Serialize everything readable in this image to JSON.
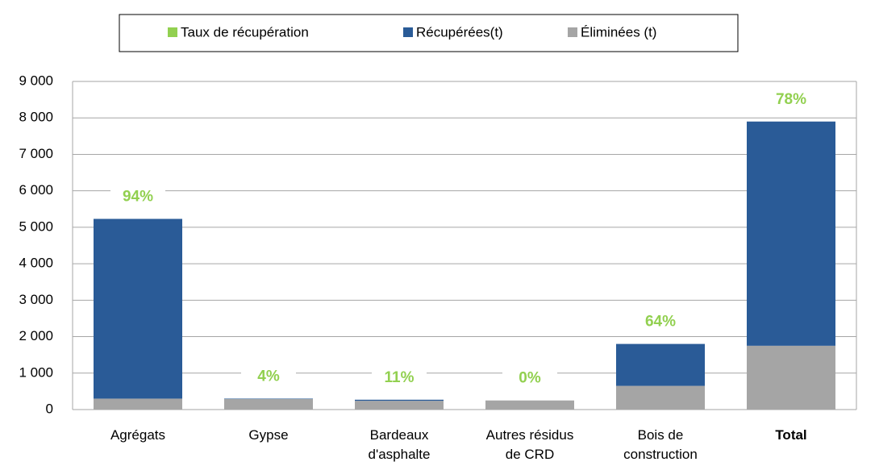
{
  "chart_data": {
    "type": "stacked_bar",
    "categories": [
      "Agrégats",
      "Gypse",
      "Bardeaux d'asphalte",
      "Autres résidus de CRD",
      "Bois de construction",
      "Total"
    ],
    "series": [
      {
        "name": "Éliminées (t)",
        "color": "#a5a5a5",
        "values": [
          300,
          290,
          240,
          250,
          650,
          1750
        ]
      },
      {
        "name": "Récupérées(t)",
        "color": "#2a5b97",
        "values": [
          4930,
          12,
          30,
          0,
          1150,
          6150
        ]
      }
    ],
    "rate": {
      "name": "Taux de récupération",
      "color": "#92d050",
      "values": [
        94,
        4,
        11,
        0,
        64,
        78
      ],
      "value_labels": [
        "94%",
        "4%",
        "11%",
        "0%",
        "64%",
        "78%"
      ]
    },
    "ylim": [
      0,
      9000
    ],
    "yticks": [
      0,
      {
        "value": 1000,
        "label": "1 000"
      },
      {
        "value": 2000,
        "label": "2 000"
      },
      {
        "value": 3000,
        "label": "3 000"
      },
      {
        "value": 4000,
        "label": "4 000"
      },
      {
        "value": 5000,
        "label": "5 000"
      },
      {
        "value": 6000,
        "label": "6 000"
      },
      {
        "value": 7000,
        "label": "7 000"
      },
      {
        "value": 8000,
        "label": "8 000"
      },
      {
        "value": 9000,
        "label": "9 000"
      }
    ],
    "grid": true
  }
}
